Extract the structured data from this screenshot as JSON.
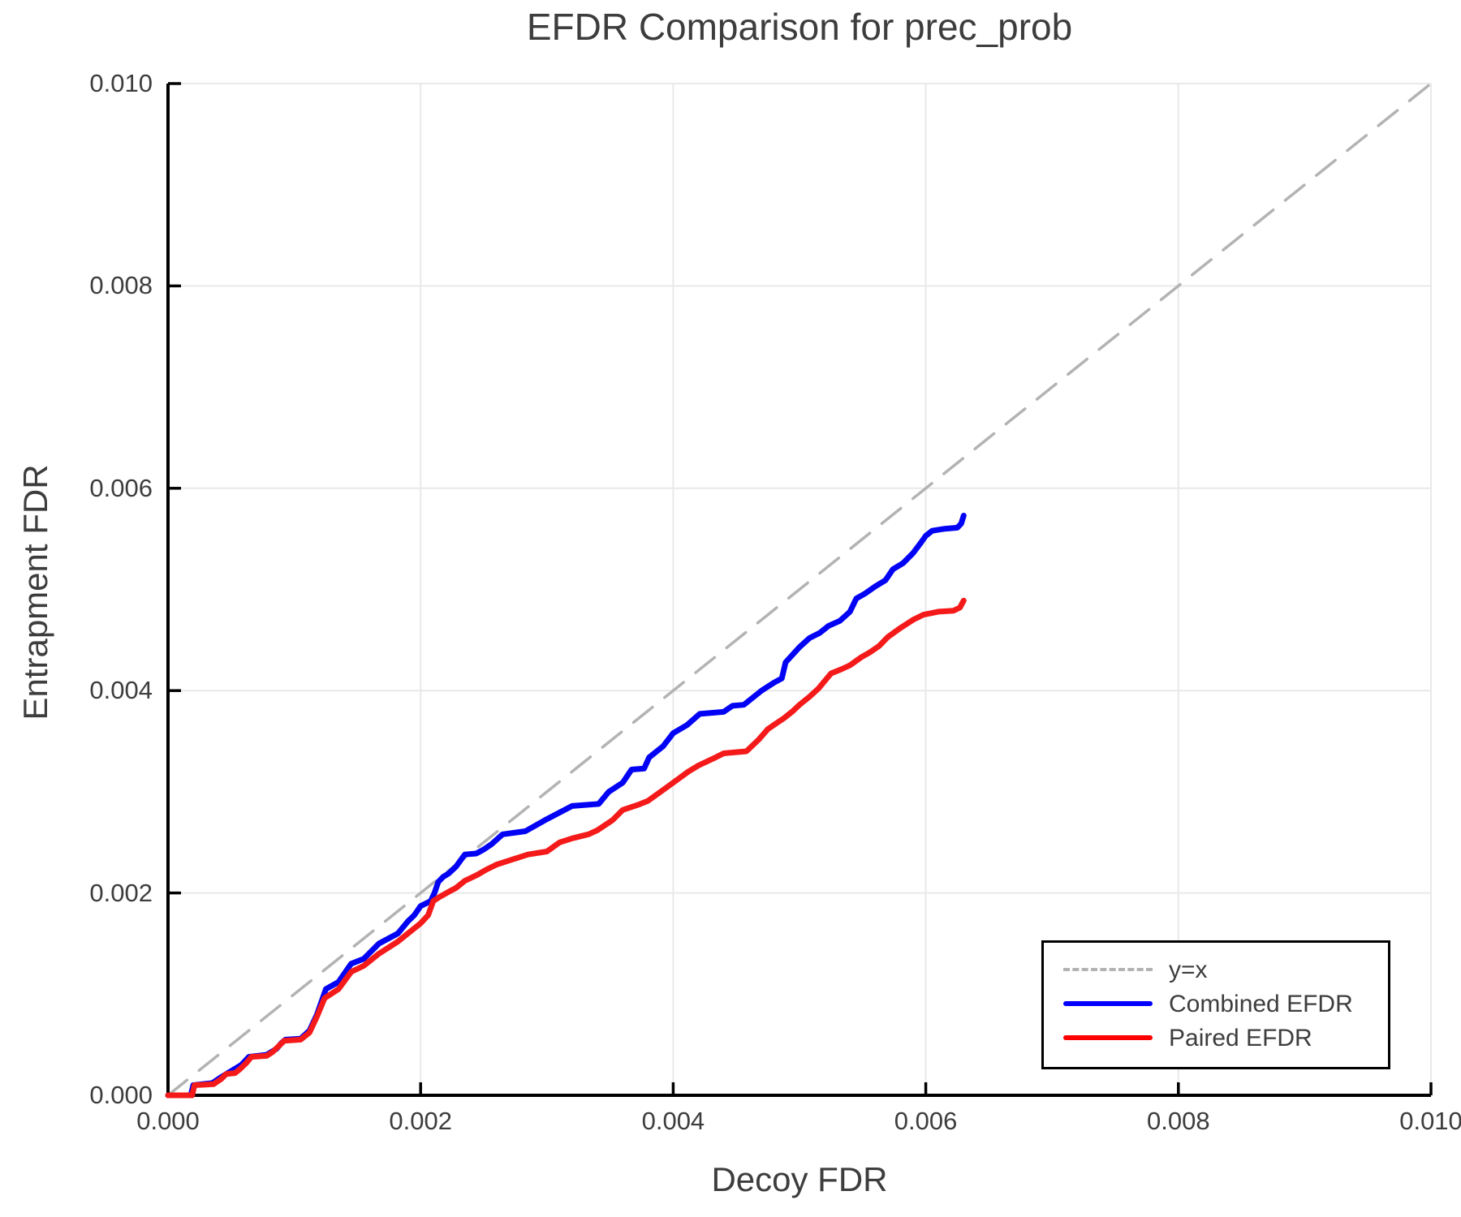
{
  "chart_data": {
    "type": "line",
    "title": "EFDR Comparison for prec_prob",
    "xlabel": "Decoy FDR",
    "ylabel": "Entrapment FDR",
    "xlim": [
      0.0,
      0.01
    ],
    "ylim": [
      0.0,
      0.01
    ],
    "grid": true,
    "x_ticks": {
      "values": [
        0.0,
        0.002,
        0.004,
        0.006,
        0.008,
        0.01
      ],
      "labels": [
        "0.000",
        "0.002",
        "0.004",
        "0.006",
        "0.008",
        "0.010"
      ]
    },
    "y_ticks": {
      "values": [
        0.0,
        0.002,
        0.004,
        0.006,
        0.008,
        0.01
      ],
      "labels": [
        "0.000",
        "0.002",
        "0.004",
        "0.006",
        "0.008",
        "0.010"
      ]
    },
    "legend": {
      "position": "lower right",
      "entries": [
        {
          "label": "y=x",
          "color": "#b3b3b3",
          "style": "dashed"
        },
        {
          "label": "Combined EFDR",
          "color": "#0000ff",
          "style": "solid"
        },
        {
          "label": "Paired EFDR",
          "color": "#ff0000",
          "style": "solid"
        }
      ]
    },
    "series": [
      {
        "name": "y=x",
        "color": "#b3b3b3",
        "style": "dashed",
        "width": 3.5,
        "points": [
          [
            0.0,
            0.0
          ],
          [
            0.01,
            0.01
          ]
        ]
      },
      {
        "name": "Combined EFDR",
        "color": "#0202f5",
        "style": "solid",
        "width": 7,
        "points": [
          [
            0,
            0
          ],
          [
            0.00018,
            0
          ],
          [
            0.0002,
            0.0001
          ],
          [
            0.00035,
            0.00012
          ],
          [
            0.00042,
            0.00018
          ],
          [
            0.0005,
            0.00024
          ],
          [
            0.00058,
            0.0003
          ],
          [
            0.00064,
            0.00038
          ],
          [
            0.00078,
            0.0004
          ],
          [
            0.00086,
            0.00046
          ],
          [
            0.0009,
            0.00052
          ],
          [
            0.00093,
            0.00055
          ],
          [
            0.00105,
            0.00056
          ],
          [
            0.00112,
            0.00064
          ],
          [
            0.00118,
            0.0008
          ],
          [
            0.00125,
            0.00105
          ],
          [
            0.00135,
            0.00112
          ],
          [
            0.00145,
            0.0013
          ],
          [
            0.00155,
            0.00135
          ],
          [
            0.00167,
            0.0015
          ],
          [
            0.00182,
            0.0016
          ],
          [
            0.0019,
            0.00172
          ],
          [
            0.00195,
            0.00178
          ],
          [
            0.002,
            0.00187
          ],
          [
            0.00208,
            0.00192
          ],
          [
            0.00211,
            0.002
          ],
          [
            0.00214,
            0.00211
          ],
          [
            0.00218,
            0.00216
          ],
          [
            0.00222,
            0.00219
          ],
          [
            0.00228,
            0.00226
          ],
          [
            0.00235,
            0.00238
          ],
          [
            0.00244,
            0.00239
          ],
          [
            0.0025,
            0.00243
          ],
          [
            0.00256,
            0.00248
          ],
          [
            0.00265,
            0.00258
          ],
          [
            0.00283,
            0.00261
          ],
          [
            0.003,
            0.00273
          ],
          [
            0.0032,
            0.00286
          ],
          [
            0.00341,
            0.00288
          ],
          [
            0.00349,
            0.003
          ],
          [
            0.0036,
            0.00309
          ],
          [
            0.00367,
            0.00322
          ],
          [
            0.00377,
            0.00323
          ],
          [
            0.00381,
            0.00334
          ],
          [
            0.00392,
            0.00345
          ],
          [
            0.004,
            0.00358
          ],
          [
            0.00411,
            0.00366
          ],
          [
            0.00421,
            0.00377
          ],
          [
            0.0044,
            0.00379
          ],
          [
            0.00447,
            0.00385
          ],
          [
            0.00456,
            0.00386
          ],
          [
            0.0047,
            0.004
          ],
          [
            0.0048,
            0.00408
          ],
          [
            0.00486,
            0.00412
          ],
          [
            0.00489,
            0.00428
          ],
          [
            0.005,
            0.00443
          ],
          [
            0.00508,
            0.00452
          ],
          [
            0.00516,
            0.00457
          ],
          [
            0.00523,
            0.00464
          ],
          [
            0.00532,
            0.00469
          ],
          [
            0.0054,
            0.00478
          ],
          [
            0.00545,
            0.00491
          ],
          [
            0.00552,
            0.00496
          ],
          [
            0.0056,
            0.00503
          ],
          [
            0.00568,
            0.00509
          ],
          [
            0.00574,
            0.0052
          ],
          [
            0.00582,
            0.00526
          ],
          [
            0.0059,
            0.00536
          ],
          [
            0.00596,
            0.00546
          ],
          [
            0.006,
            0.00553
          ],
          [
            0.00605,
            0.00558
          ],
          [
            0.00615,
            0.0056
          ],
          [
            0.00625,
            0.00561
          ],
          [
            0.00628,
            0.00565
          ],
          [
            0.0063,
            0.00573
          ]
        ]
      },
      {
        "name": "Paired EFDR",
        "color": "#f51a1a",
        "style": "solid",
        "width": 7,
        "points": [
          [
            0,
            0
          ],
          [
            0.00019,
            0
          ],
          [
            0.00021,
            0.0001
          ],
          [
            0.00036,
            0.00011
          ],
          [
            0.00042,
            0.00016
          ],
          [
            0.00046,
            0.00021
          ],
          [
            0.00053,
            0.00022
          ],
          [
            0.00057,
            0.00026
          ],
          [
            0.00062,
            0.00032
          ],
          [
            0.00066,
            0.00038
          ],
          [
            0.00078,
            0.00039
          ],
          [
            0.00083,
            0.00043
          ],
          [
            0.00088,
            0.00049
          ],
          [
            0.00092,
            0.00054
          ],
          [
            0.00105,
            0.00055
          ],
          [
            0.00112,
            0.00062
          ],
          [
            0.00118,
            0.00078
          ],
          [
            0.00124,
            0.00096
          ],
          [
            0.00135,
            0.00105
          ],
          [
            0.00145,
            0.00122
          ],
          [
            0.00155,
            0.00128
          ],
          [
            0.00167,
            0.0014
          ],
          [
            0.00182,
            0.00152
          ],
          [
            0.0019,
            0.0016
          ],
          [
            0.002,
            0.0017
          ],
          [
            0.00206,
            0.00178
          ],
          [
            0.0021,
            0.00192
          ],
          [
            0.00215,
            0.00196
          ],
          [
            0.00222,
            0.00201
          ],
          [
            0.00228,
            0.00205
          ],
          [
            0.00235,
            0.00212
          ],
          [
            0.00245,
            0.00218
          ],
          [
            0.00252,
            0.00223
          ],
          [
            0.0026,
            0.00228
          ],
          [
            0.0027,
            0.00232
          ],
          [
            0.00285,
            0.00238
          ],
          [
            0.003,
            0.00241
          ],
          [
            0.0031,
            0.0025
          ],
          [
            0.0032,
            0.00254
          ],
          [
            0.00333,
            0.00258
          ],
          [
            0.0034,
            0.00262
          ],
          [
            0.00352,
            0.00272
          ],
          [
            0.0036,
            0.00282
          ],
          [
            0.00372,
            0.00287
          ],
          [
            0.0038,
            0.00291
          ],
          [
            0.0039,
            0.003
          ],
          [
            0.004,
            0.00309
          ],
          [
            0.00412,
            0.0032
          ],
          [
            0.0042,
            0.00326
          ],
          [
            0.00432,
            0.00333
          ],
          [
            0.0044,
            0.00338
          ],
          [
            0.00458,
            0.0034
          ],
          [
            0.00468,
            0.00352
          ],
          [
            0.00475,
            0.00362
          ],
          [
            0.00482,
            0.00368
          ],
          [
            0.00488,
            0.00373
          ],
          [
            0.00495,
            0.0038
          ],
          [
            0.005,
            0.00386
          ],
          [
            0.00508,
            0.00394
          ],
          [
            0.00515,
            0.00402
          ],
          [
            0.00525,
            0.00417
          ],
          [
            0.00533,
            0.00421
          ],
          [
            0.0054,
            0.00425
          ],
          [
            0.00549,
            0.00433
          ],
          [
            0.00556,
            0.00438
          ],
          [
            0.00563,
            0.00444
          ],
          [
            0.0057,
            0.00453
          ],
          [
            0.0058,
            0.00462
          ],
          [
            0.0059,
            0.0047
          ],
          [
            0.00598,
            0.00475
          ],
          [
            0.0061,
            0.00478
          ],
          [
            0.00622,
            0.00479
          ],
          [
            0.00627,
            0.00482
          ],
          [
            0.0063,
            0.00489
          ]
        ]
      }
    ]
  },
  "colors": {
    "text": "#3d3d3d",
    "spine": "#000000",
    "grid": "#e9e9e9",
    "background": "#ffffff"
  }
}
